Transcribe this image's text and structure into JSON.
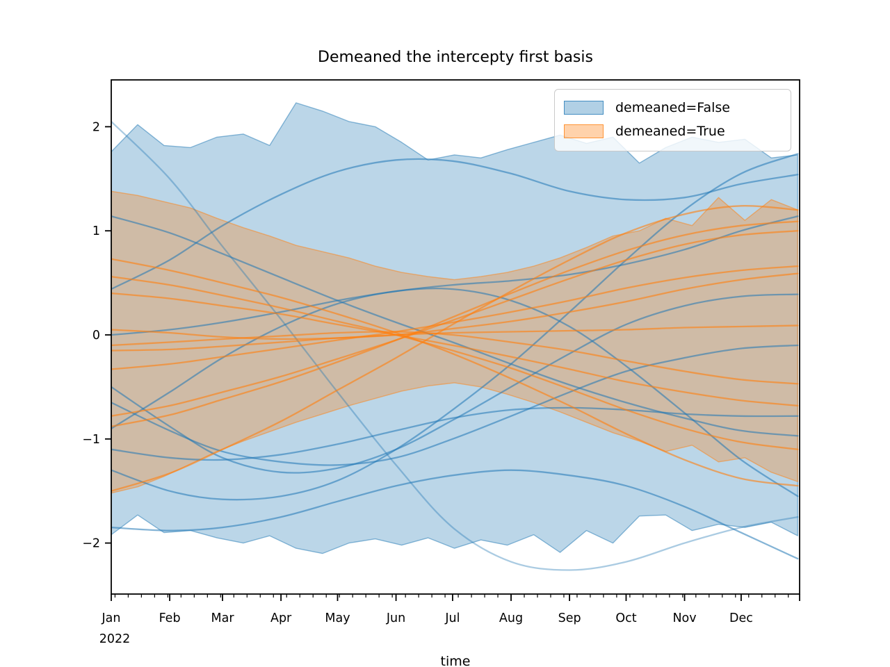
{
  "title": "Demeaned the intercepty first basis",
  "xlabel": "time",
  "colors": {
    "false_series": "#1f77b4",
    "true_series": "#ff7f0e",
    "spine": "#000000",
    "legend_border": "#c9c9c9"
  },
  "legend": {
    "items": [
      {
        "label": "demeaned=False",
        "color": "#1f77b4"
      },
      {
        "label": "demeaned=True",
        "color": "#ff7f0e"
      }
    ]
  },
  "axes": {
    "x_tick_labels": [
      "Jan",
      "Feb",
      "Mar",
      "Apr",
      "May",
      "Jun",
      "Jul",
      "Aug",
      "Sep",
      "Oct",
      "Nov",
      "Dec"
    ],
    "x_year_label": "2022",
    "month_start_days": [
      0,
      31,
      59,
      90,
      120,
      151,
      181,
      212,
      243,
      273,
      304,
      334
    ],
    "y_tick_values": [
      -2,
      -1,
      0,
      1,
      2
    ],
    "y_tick_labels": [
      "−2",
      "−1",
      "0",
      "1",
      "2"
    ],
    "ylim": [
      -2.49,
      2.45
    ],
    "xlim_days": [
      0,
      365
    ],
    "minor_tick_step_days": 7,
    "minor_tick_first_day": 2
  },
  "chart_data": {
    "type": "area+line",
    "x_unit": "day_of_year_2022",
    "band_days": [
      0,
      14,
      28,
      42,
      56,
      70,
      84,
      98,
      112,
      126,
      140,
      154,
      168,
      182,
      196,
      210,
      224,
      238,
      252,
      266,
      280,
      294,
      308,
      322,
      336,
      350,
      364
    ],
    "line_days": [
      0,
      31,
      59,
      90,
      120,
      151,
      181,
      212,
      243,
      273,
      304,
      334,
      364
    ],
    "series": [
      {
        "name": "demeaned=False",
        "color": "#1f77b4",
        "band_upper": [
          1.76,
          2.02,
          1.82,
          1.8,
          1.9,
          1.93,
          1.82,
          2.23,
          2.15,
          2.05,
          2.0,
          1.85,
          1.68,
          1.73,
          1.7,
          1.78,
          1.85,
          1.92,
          1.84,
          1.9,
          1.65,
          1.8,
          1.9,
          1.85,
          1.88,
          1.7,
          1.73
        ],
        "band_lower": [
          -1.92,
          -1.73,
          -1.9,
          -1.88,
          -1.95,
          -2.0,
          -1.93,
          -2.05,
          -2.1,
          -2.0,
          -1.96,
          -2.02,
          -1.95,
          -2.05,
          -1.97,
          -2.02,
          -1.92,
          -2.09,
          -1.88,
          -2.0,
          -1.74,
          -1.73,
          -1.88,
          -1.82,
          -1.85,
          -1.8,
          -1.93
        ],
        "lines": [
          {
            "alpha": 0.38,
            "y": [
              2.05,
              1.5,
              0.85,
              0.15,
              -0.55,
              -1.25,
              -1.85,
              -2.18,
              -2.26,
              -2.18,
              -2.0,
              -1.85,
              -1.75
            ]
          },
          {
            "alpha": 0.55,
            "y": [
              1.14,
              0.98,
              0.78,
              0.55,
              0.33,
              0.12,
              -0.07,
              -0.28,
              -0.48,
              -0.65,
              -0.8,
              -0.92,
              -0.97
            ]
          },
          {
            "alpha": 0.55,
            "y": [
              0.44,
              0.72,
              1.05,
              1.35,
              1.57,
              1.68,
              1.67,
              1.55,
              1.38,
              1.3,
              1.32,
              1.45,
              1.54
            ]
          },
          {
            "alpha": 0.55,
            "y": [
              0.0,
              0.05,
              0.12,
              0.22,
              0.33,
              0.42,
              0.48,
              0.52,
              0.58,
              0.68,
              0.82,
              1.0,
              1.14
            ]
          },
          {
            "alpha": 0.55,
            "y": [
              -0.5,
              -0.88,
              -1.18,
              -1.32,
              -1.28,
              -1.1,
              -0.82,
              -0.5,
              -0.18,
              0.1,
              0.28,
              0.37,
              0.39
            ]
          },
          {
            "alpha": 0.55,
            "y": [
              -0.65,
              -0.92,
              -1.12,
              -1.22,
              -1.25,
              -1.18,
              -1.0,
              -0.78,
              -0.55,
              -0.35,
              -0.22,
              -0.13,
              -0.1
            ]
          },
          {
            "alpha": 0.55,
            "y": [
              -0.9,
              -0.55,
              -0.22,
              0.08,
              0.3,
              0.42,
              0.44,
              0.33,
              0.08,
              -0.3,
              -0.75,
              -1.2,
              -1.55
            ]
          },
          {
            "alpha": 0.55,
            "y": [
              -1.1,
              -1.18,
              -1.2,
              -1.15,
              -1.05,
              -0.92,
              -0.8,
              -0.72,
              -0.7,
              -0.72,
              -0.76,
              -0.78,
              -0.78
            ]
          },
          {
            "alpha": 0.55,
            "y": [
              -1.3,
              -1.5,
              -1.58,
              -1.55,
              -1.4,
              -1.1,
              -0.72,
              -0.28,
              0.22,
              0.72,
              1.2,
              1.55,
              1.74
            ]
          },
          {
            "alpha": 0.55,
            "y": [
              -1.85,
              -1.88,
              -1.85,
              -1.75,
              -1.6,
              -1.45,
              -1.35,
              -1.3,
              -1.35,
              -1.45,
              -1.65,
              -1.9,
              -2.15
            ]
          }
        ]
      },
      {
        "name": "demeaned=True",
        "color": "#ff7f0e",
        "band_upper": [
          1.38,
          1.34,
          1.28,
          1.22,
          1.12,
          1.03,
          0.95,
          0.86,
          0.8,
          0.74,
          0.66,
          0.6,
          0.56,
          0.53,
          0.56,
          0.6,
          0.66,
          0.74,
          0.84,
          0.95,
          1.0,
          1.12,
          1.05,
          1.32,
          1.1,
          1.3,
          1.2
        ],
        "band_lower": [
          -1.52,
          -1.46,
          -1.36,
          -1.24,
          -1.12,
          -1.02,
          -0.93,
          -0.84,
          -0.76,
          -0.68,
          -0.61,
          -0.54,
          -0.49,
          -0.46,
          -0.5,
          -0.57,
          -0.65,
          -0.74,
          -0.84,
          -0.94,
          -1.02,
          -1.12,
          -1.06,
          -1.22,
          -1.18,
          -1.32,
          -1.41
        ],
        "lines": [
          {
            "alpha": 0.6,
            "y": [
              0.73,
              0.62,
              0.5,
              0.36,
              0.2,
              0.02,
              -0.18,
              -0.42,
              -0.68,
              -0.95,
              -1.2,
              -1.38,
              -1.45
            ]
          },
          {
            "alpha": 0.6,
            "y": [
              0.56,
              0.48,
              0.38,
              0.26,
              0.13,
              0.0,
              -0.15,
              -0.32,
              -0.52,
              -0.72,
              -0.9,
              -1.03,
              -1.1
            ]
          },
          {
            "alpha": 0.6,
            "y": [
              0.4,
              0.35,
              0.28,
              0.2,
              0.1,
              0.0,
              -0.1,
              -0.21,
              -0.33,
              -0.45,
              -0.55,
              -0.63,
              -0.68
            ]
          },
          {
            "alpha": 0.6,
            "y": [
              -0.1,
              -0.07,
              -0.04,
              -0.01,
              0.02,
              0.03,
              0.0,
              -0.07,
              -0.15,
              -0.25,
              -0.35,
              -0.43,
              -0.47
            ]
          },
          {
            "alpha": 0.6,
            "y": [
              -0.15,
              -0.14,
              -0.11,
              -0.07,
              -0.03,
              0.0,
              0.02,
              0.03,
              0.04,
              0.05,
              0.07,
              0.08,
              0.09
            ]
          },
          {
            "alpha": 0.6,
            "y": [
              -0.33,
              -0.28,
              -0.21,
              -0.13,
              -0.05,
              0.03,
              0.12,
              0.22,
              0.33,
              0.45,
              0.55,
              0.62,
              0.66
            ]
          },
          {
            "alpha": 0.6,
            "y": [
              -0.78,
              -0.68,
              -0.55,
              -0.4,
              -0.23,
              -0.05,
              0.14,
              0.34,
              0.54,
              0.72,
              0.87,
              0.96,
              1.0
            ]
          },
          {
            "alpha": 0.6,
            "y": [
              -0.88,
              -0.77,
              -0.62,
              -0.45,
              -0.26,
              -0.05,
              0.17,
              0.4,
              0.62,
              0.81,
              0.96,
              1.05,
              1.09
            ]
          },
          {
            "alpha": 0.6,
            "y": [
              -1.5,
              -1.33,
              -1.1,
              -0.83,
              -0.53,
              -0.22,
              0.1,
              0.42,
              0.72,
              0.98,
              1.16,
              1.24,
              1.2
            ]
          },
          {
            "alpha": 0.6,
            "y": [
              0.05,
              0.02,
              -0.02,
              -0.04,
              -0.03,
              0.0,
              0.06,
              0.13,
              0.22,
              0.32,
              0.44,
              0.53,
              0.59
            ]
          }
        ]
      }
    ]
  }
}
